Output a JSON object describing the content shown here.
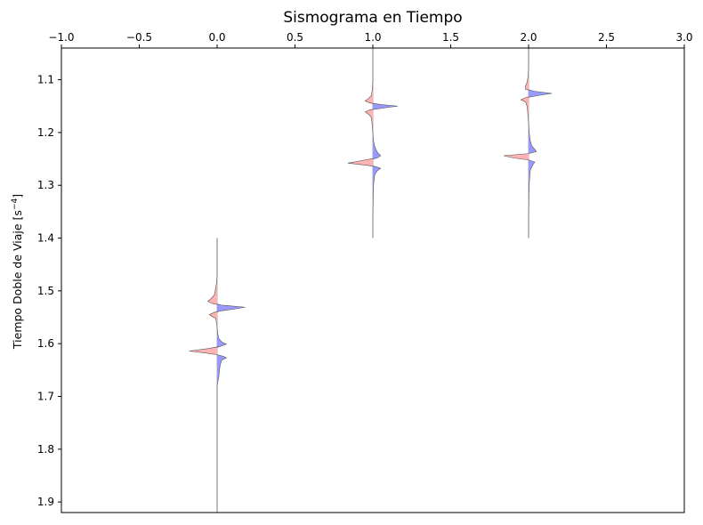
{
  "chart_data": {
    "type": "line",
    "title": "Sismograma en Tiempo",
    "xlabel": "",
    "ylabel": "Tiempo Doble de Viaje [s",
    "ylabel_exponent": "−4",
    "ylabel_suffix": "]",
    "xlim": [
      -1.0,
      3.0
    ],
    "ylim": [
      1.92,
      1.04
    ],
    "x_axis_position": "top",
    "y_axis_inverted": true,
    "grid": false,
    "legend": "none",
    "xticks": [
      "−1.0",
      "−0.5",
      "0.0",
      "0.5",
      "1.0",
      "1.5",
      "2.0",
      "2.5",
      "3.0"
    ],
    "xtick_values": [
      -1.0,
      -0.5,
      0.0,
      0.5,
      1.0,
      1.5,
      2.0,
      2.5,
      3.0
    ],
    "yticks": [
      "1.1",
      "1.2",
      "1.3",
      "1.4",
      "1.5",
      "1.6",
      "1.7",
      "1.8",
      "1.9"
    ],
    "ytick_values": [
      1.1,
      1.2,
      1.3,
      1.4,
      1.5,
      1.6,
      1.7,
      1.8,
      1.9
    ],
    "positive_fill_color": "#9999ff",
    "negative_fill_color": "#ffb3b3",
    "trace_line_color": "#b0b0b0",
    "series": [
      {
        "offset": 0.0,
        "t_start": 1.4,
        "t_end": 1.92,
        "points": [
          [
            1.4,
            0.0
          ],
          [
            1.47,
            0.0
          ],
          [
            1.485,
            -0.004
          ],
          [
            1.495,
            -0.01
          ],
          [
            1.5,
            -0.012
          ],
          [
            1.508,
            -0.018
          ],
          [
            1.515,
            -0.04
          ],
          [
            1.52,
            -0.06
          ],
          [
            1.524,
            -0.03
          ],
          [
            1.527,
            0.03
          ],
          [
            1.531,
            0.18
          ],
          [
            1.535,
            0.1
          ],
          [
            1.538,
            0.02
          ],
          [
            1.541,
            -0.02
          ],
          [
            1.545,
            -0.05
          ],
          [
            1.549,
            -0.03
          ],
          [
            1.552,
            -0.01
          ],
          [
            1.56,
            -0.004
          ],
          [
            1.57,
            0.0
          ],
          [
            1.58,
            0.004
          ],
          [
            1.59,
            0.01
          ],
          [
            1.597,
            0.03
          ],
          [
            1.601,
            0.06
          ],
          [
            1.605,
            0.02
          ],
          [
            1.609,
            -0.05
          ],
          [
            1.614,
            -0.18
          ],
          [
            1.618,
            -0.07
          ],
          [
            1.621,
            0.0
          ],
          [
            1.624,
            0.04
          ],
          [
            1.627,
            0.06
          ],
          [
            1.631,
            0.03
          ],
          [
            1.64,
            0.02
          ],
          [
            1.65,
            0.015
          ],
          [
            1.66,
            0.012
          ],
          [
            1.67,
            0.006
          ],
          [
            1.68,
            0.0
          ],
          [
            1.92,
            0.0
          ]
        ]
      },
      {
        "offset": 1.0,
        "t_start": 1.04,
        "t_end": 1.4,
        "points": [
          [
            1.04,
            0.0
          ],
          [
            1.05,
            0.0
          ],
          [
            1.1,
            0.0
          ],
          [
            1.12,
            -0.004
          ],
          [
            1.13,
            -0.01
          ],
          [
            1.136,
            -0.03
          ],
          [
            1.14,
            -0.05
          ],
          [
            1.144,
            -0.02
          ],
          [
            1.147,
            0.05
          ],
          [
            1.15,
            0.16
          ],
          [
            1.154,
            0.06
          ],
          [
            1.157,
            -0.02
          ],
          [
            1.161,
            -0.05
          ],
          [
            1.165,
            -0.03
          ],
          [
            1.17,
            -0.012
          ],
          [
            1.18,
            -0.006
          ],
          [
            1.19,
            -0.003
          ],
          [
            1.2,
            0.0
          ],
          [
            1.215,
            0.004
          ],
          [
            1.225,
            0.01
          ],
          [
            1.232,
            0.02
          ],
          [
            1.238,
            0.03
          ],
          [
            1.244,
            0.05
          ],
          [
            1.248,
            0.03
          ],
          [
            1.252,
            -0.05
          ],
          [
            1.258,
            -0.16
          ],
          [
            1.262,
            -0.04
          ],
          [
            1.265,
            0.02
          ],
          [
            1.268,
            0.05
          ],
          [
            1.272,
            0.03
          ],
          [
            1.28,
            0.012
          ],
          [
            1.29,
            0.008
          ],
          [
            1.3,
            0.004
          ],
          [
            1.33,
            0.002
          ],
          [
            1.36,
            0.0
          ],
          [
            1.4,
            0.0
          ]
        ]
      },
      {
        "offset": 2.0,
        "t_start": 1.04,
        "t_end": 1.4,
        "points": [
          [
            1.04,
            0.0
          ],
          [
            1.08,
            0.0
          ],
          [
            1.095,
            -0.004
          ],
          [
            1.105,
            -0.01
          ],
          [
            1.112,
            -0.02
          ],
          [
            1.118,
            -0.02
          ],
          [
            1.122,
            0.04
          ],
          [
            1.126,
            0.15
          ],
          [
            1.13,
            0.06
          ],
          [
            1.134,
            -0.02
          ],
          [
            1.138,
            -0.05
          ],
          [
            1.142,
            -0.02
          ],
          [
            1.15,
            -0.01
          ],
          [
            1.16,
            -0.006
          ],
          [
            1.17,
            -0.004
          ],
          [
            1.18,
            0.0
          ],
          [
            1.2,
            0.004
          ],
          [
            1.215,
            0.01
          ],
          [
            1.225,
            0.02
          ],
          [
            1.232,
            0.04
          ],
          [
            1.236,
            0.05
          ],
          [
            1.24,
            0.0
          ],
          [
            1.244,
            -0.16
          ],
          [
            1.248,
            -0.1
          ],
          [
            1.252,
            0.0
          ],
          [
            1.256,
            0.04
          ],
          [
            1.26,
            0.03
          ],
          [
            1.27,
            0.012
          ],
          [
            1.28,
            0.008
          ],
          [
            1.3,
            0.004
          ],
          [
            1.33,
            0.002
          ],
          [
            1.36,
            0.0
          ],
          [
            1.4,
            0.0
          ]
        ]
      }
    ]
  }
}
